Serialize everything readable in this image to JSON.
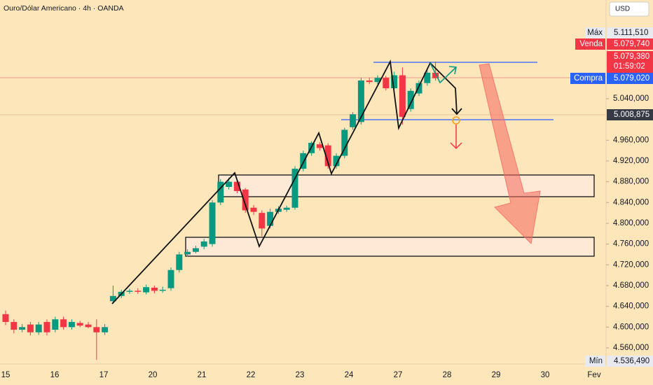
{
  "chart_data": {
    "type": "candlestick",
    "title": "Ouro/Dólar Americano · 4h · OANDA",
    "currency": "USD",
    "up_color": "#089981",
    "down_color": "#f23645",
    "ylim": [
      4529,
      5230
    ],
    "yticks": [
      {
        "value": 4560,
        "label": "4.560,000"
      },
      {
        "value": 4600,
        "label": "4.600,000"
      },
      {
        "value": 4640,
        "label": "4.640,000"
      },
      {
        "value": 4680,
        "label": "4.680,000"
      },
      {
        "value": 4720,
        "label": "4.720,000"
      },
      {
        "value": 4760,
        "label": "4.760,000"
      },
      {
        "value": 4800,
        "label": "4.800,000"
      },
      {
        "value": 4840,
        "label": "4.840,000"
      },
      {
        "value": 4880,
        "label": "4.880,000"
      },
      {
        "value": 4920,
        "label": "4.920,000"
      },
      {
        "value": 4960,
        "label": "4.960,000"
      },
      {
        "value": 5040,
        "label": "5.040,000"
      }
    ],
    "x_labels": [
      "15",
      "16",
      "17",
      "20",
      "21",
      "22",
      "23",
      "24",
      "27",
      "28",
      "29",
      "30",
      "Fev"
    ],
    "open": [
      4625,
      4610,
      4595,
      4605,
      4590,
      4610,
      4595,
      4615,
      4600,
      4608,
      4605,
      4600,
      4590,
      4650,
      4660,
      4668,
      4670,
      4667,
      4676,
      4670,
      4675,
      4710,
      4740,
      4745,
      4755,
      4760,
      4840,
      4870,
      4880,
      4865,
      4830,
      4820,
      4795,
      4822,
      4826,
      4830,
      4905,
      4935,
      4952,
      4950,
      4910,
      4930,
      4985,
      4995,
      5075,
      5072,
      5080,
      5060,
      5085,
      5020,
      5050,
      5070,
      5090
    ],
    "high": [
      4632,
      4615,
      4606,
      4610,
      4610,
      4615,
      4620,
      4620,
      4615,
      4612,
      4610,
      4615,
      4606,
      4680,
      4672,
      4674,
      4675,
      4682,
      4680,
      4678,
      4715,
      4745,
      4750,
      4757,
      4770,
      4845,
      4885,
      4888,
      4884,
      4868,
      4835,
      4825,
      4828,
      4833,
      4834,
      4910,
      4940,
      4958,
      4956,
      4954,
      4935,
      4984,
      5014,
      5080,
      5080,
      5085,
      5084,
      5092,
      5100,
      5060,
      5075,
      5095,
      5111.51
    ],
    "low": [
      4604,
      4588,
      4590,
      4584,
      4585,
      4584,
      4590,
      4595,
      4595,
      4600,
      4598,
      4537,
      4585,
      4645,
      4656,
      4664,
      4664,
      4663,
      4665,
      4666,
      4670,
      4705,
      4736,
      4742,
      4750,
      4755,
      4835,
      4865,
      4858,
      4820,
      4816,
      4775,
      4790,
      4818,
      4822,
      4826,
      4900,
      4930,
      4940,
      4905,
      4905,
      4925,
      4980,
      4990,
      5068,
      5068,
      5056,
      5055,
      4990,
      5015,
      5045,
      5065,
      5075
    ],
    "close": [
      4610,
      4595,
      4600,
      4590,
      4605,
      4590,
      4615,
      4600,
      4610,
      4603,
      4600,
      4590,
      4600,
      4660,
      4668,
      4670,
      4668,
      4677,
      4670,
      4672,
      4710,
      4740,
      4745,
      4752,
      4765,
      4840,
      4880,
      4880,
      4862,
      4825,
      4822,
      4790,
      4822,
      4828,
      4830,
      4905,
      4935,
      4955,
      4945,
      4910,
      4930,
      4980,
      5010,
      5075,
      5072,
      5080,
      5060,
      5085,
      5005,
      5055,
      5070,
      5090,
      5079.38
    ],
    "price_tags": [
      {
        "name": "Máx",
        "value": 5111.51,
        "value_label": "5.111,510",
        "color": "#e8eaf0"
      },
      {
        "name": "Venda",
        "value": 5079.74,
        "value_label": "5.079,740",
        "color": "#f23645"
      },
      {
        "value": 5079.38,
        "value_label": "5.079,380",
        "countdown": "01:59:02",
        "color": "#f23645"
      },
      {
        "name": "Compra",
        "value": 5079.02,
        "value_label": "5.079,020",
        "color": "#2962ff"
      },
      {
        "value": 5008.875,
        "value_label": "5.008,875",
        "color": "#363a45"
      },
      {
        "name": "Mín",
        "value": 4536.49,
        "value_label": "4.536,490",
        "color": "#e8eaf0"
      }
    ]
  }
}
